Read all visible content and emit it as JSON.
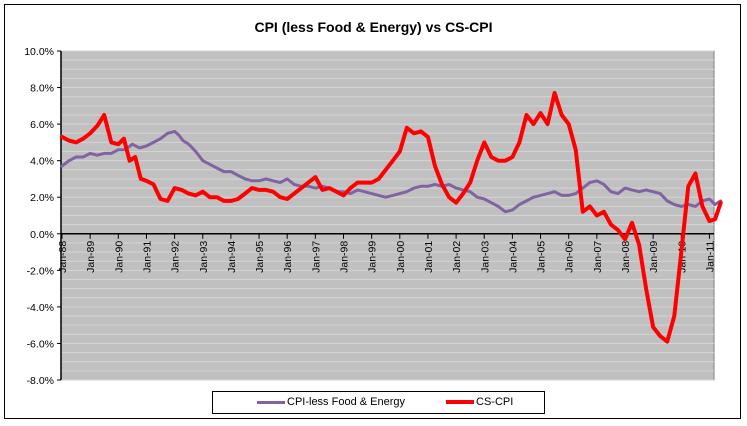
{
  "chart_data": {
    "type": "line",
    "title": "CPI (less Food & Energy) vs CS-CPI",
    "xlabel": "",
    "ylabel": "",
    "ylim": [
      -8.0,
      10.0
    ],
    "xlim": [
      1988.0,
      2011.5
    ],
    "y_ticks": [
      "10.0%",
      "8.0%",
      "6.0%",
      "4.0%",
      "2.0%",
      "0.0%",
      "-2.0%",
      "-4.0%",
      "-6.0%",
      "-8.0%"
    ],
    "y_tick_values": [
      10,
      8,
      6,
      4,
      2,
      0,
      -2,
      -4,
      -6,
      -8
    ],
    "x_ticks": [
      "Jan-88",
      "Jan-89",
      "Jan-90",
      "Jan-91",
      "Jan-92",
      "Jan-93",
      "Jan-94",
      "Jan-95",
      "Jan-96",
      "Jan-97",
      "Jan-98",
      "Jan-99",
      "Jan-00",
      "Jan-01",
      "Jan-02",
      "Jan-03",
      "Jan-04",
      "Jan-05",
      "Jan-06",
      "Jan-07",
      "Jan-08",
      "Jan-09",
      "Jan-10",
      "Jan-11"
    ],
    "x_tick_values": [
      1988,
      1989,
      1990,
      1991,
      1992,
      1993,
      1994,
      1995,
      1996,
      1997,
      1998,
      1999,
      2000,
      2001,
      2002,
      2003,
      2004,
      2005,
      2006,
      2007,
      2008,
      2009,
      2010,
      2011
    ],
    "grid": true,
    "legend_position": "bottom",
    "series": [
      {
        "name": "CPI-less Food & Energy",
        "color": "#8064A2",
        "x": [
          1988.0,
          1988.25,
          1988.5,
          1988.75,
          1989.0,
          1989.25,
          1989.5,
          1989.75,
          1990.0,
          1990.25,
          1990.5,
          1990.75,
          1991.0,
          1991.25,
          1991.5,
          1991.75,
          1992.0,
          1992.15,
          1992.3,
          1992.5,
          1992.75,
          1993.0,
          1993.25,
          1993.5,
          1993.75,
          1994.0,
          1994.25,
          1994.5,
          1994.75,
          1995.0,
          1995.25,
          1995.5,
          1995.75,
          1996.0,
          1996.25,
          1996.5,
          1996.75,
          1997.0,
          1997.25,
          1997.5,
          1997.75,
          1998.0,
          1998.25,
          1998.5,
          1998.75,
          1999.0,
          1999.25,
          1999.5,
          1999.75,
          2000.0,
          2000.25,
          2000.5,
          2000.75,
          2001.0,
          2001.25,
          2001.5,
          2001.75,
          2002.0,
          2002.25,
          2002.5,
          2002.75,
          2003.0,
          2003.25,
          2003.5,
          2003.75,
          2004.0,
          2004.25,
          2004.5,
          2004.75,
          2005.0,
          2005.25,
          2005.5,
          2005.75,
          2006.0,
          2006.25,
          2006.5,
          2006.75,
          2007.0,
          2007.25,
          2007.5,
          2007.75,
          2008.0,
          2008.25,
          2008.5,
          2008.75,
          2009.0,
          2009.25,
          2009.5,
          2009.75,
          2010.0,
          2010.25,
          2010.5,
          2010.75,
          2011.0,
          2011.2,
          2011.4
        ],
        "values": [
          3.7,
          4.0,
          4.2,
          4.2,
          4.4,
          4.3,
          4.4,
          4.4,
          4.6,
          4.6,
          4.9,
          4.7,
          4.8,
          5.0,
          5.2,
          5.5,
          5.6,
          5.4,
          5.1,
          4.9,
          4.5,
          4.0,
          3.8,
          3.6,
          3.4,
          3.4,
          3.2,
          3.0,
          2.9,
          2.9,
          3.0,
          2.9,
          2.8,
          3.0,
          2.7,
          2.6,
          2.6,
          2.5,
          2.6,
          2.5,
          2.3,
          2.3,
          2.2,
          2.4,
          2.3,
          2.2,
          2.1,
          2.0,
          2.1,
          2.2,
          2.3,
          2.5,
          2.6,
          2.6,
          2.7,
          2.6,
          2.7,
          2.5,
          2.4,
          2.3,
          2.0,
          1.9,
          1.7,
          1.5,
          1.2,
          1.3,
          1.6,
          1.8,
          2.0,
          2.1,
          2.2,
          2.3,
          2.1,
          2.1,
          2.2,
          2.5,
          2.8,
          2.9,
          2.7,
          2.3,
          2.2,
          2.5,
          2.4,
          2.3,
          2.4,
          2.3,
          2.2,
          1.8,
          1.6,
          1.5,
          1.6,
          1.5,
          1.8,
          1.9,
          1.6,
          1.8
        ]
      },
      {
        "name": "CS-CPI",
        "color": "#FF0000",
        "x": [
          1988.0,
          1988.25,
          1988.5,
          1988.75,
          1989.0,
          1989.25,
          1989.5,
          1989.75,
          1990.0,
          1990.2,
          1990.4,
          1990.6,
          1990.8,
          1991.0,
          1991.25,
          1991.5,
          1991.75,
          1992.0,
          1992.25,
          1992.5,
          1992.75,
          1993.0,
          1993.25,
          1993.5,
          1993.75,
          1994.0,
          1994.25,
          1994.5,
          1994.75,
          1995.0,
          1995.25,
          1995.5,
          1995.75,
          1996.0,
          1996.25,
          1996.5,
          1996.75,
          1997.0,
          1997.25,
          1997.5,
          1997.75,
          1998.0,
          1998.25,
          1998.5,
          1998.75,
          1999.0,
          1999.25,
          1999.5,
          1999.75,
          2000.0,
          2000.25,
          2000.5,
          2000.75,
          2001.0,
          2001.25,
          2001.5,
          2001.75,
          2002.0,
          2002.25,
          2002.5,
          2002.75,
          2003.0,
          2003.25,
          2003.5,
          2003.75,
          2004.0,
          2004.25,
          2004.5,
          2004.75,
          2005.0,
          2005.25,
          2005.5,
          2005.75,
          2006.0,
          2006.25,
          2006.5,
          2006.75,
          2007.0,
          2007.25,
          2007.5,
          2007.75,
          2008.0,
          2008.25,
          2008.5,
          2008.75,
          2009.0,
          2009.25,
          2009.5,
          2009.75,
          2010.0,
          2010.25,
          2010.5,
          2010.75,
          2011.0,
          2011.2,
          2011.4
        ],
        "values": [
          5.3,
          5.1,
          5.0,
          5.2,
          5.5,
          5.9,
          6.5,
          5.0,
          4.9,
          5.2,
          4.0,
          4.2,
          3.0,
          2.9,
          2.7,
          1.9,
          1.8,
          2.5,
          2.4,
          2.2,
          2.1,
          2.3,
          2.0,
          2.0,
          1.8,
          1.8,
          1.9,
          2.2,
          2.5,
          2.4,
          2.4,
          2.3,
          2.0,
          1.9,
          2.2,
          2.5,
          2.8,
          3.1,
          2.4,
          2.5,
          2.3,
          2.1,
          2.5,
          2.8,
          2.8,
          2.8,
          3.0,
          3.5,
          4.0,
          4.5,
          5.8,
          5.5,
          5.6,
          5.3,
          3.7,
          2.7,
          2.0,
          1.7,
          2.2,
          2.8,
          4.0,
          5.0,
          4.2,
          4.0,
          4.0,
          4.2,
          5.0,
          6.5,
          6.0,
          6.6,
          6.0,
          7.7,
          6.5,
          6.0,
          4.6,
          1.2,
          1.5,
          1.0,
          1.2,
          0.5,
          0.2,
          -0.3,
          0.6,
          -0.6,
          -3.0,
          -5.1,
          -5.6,
          -5.9,
          -4.5,
          -1.0,
          2.6,
          3.3,
          1.5,
          0.7,
          0.8,
          1.7
        ]
      }
    ]
  }
}
